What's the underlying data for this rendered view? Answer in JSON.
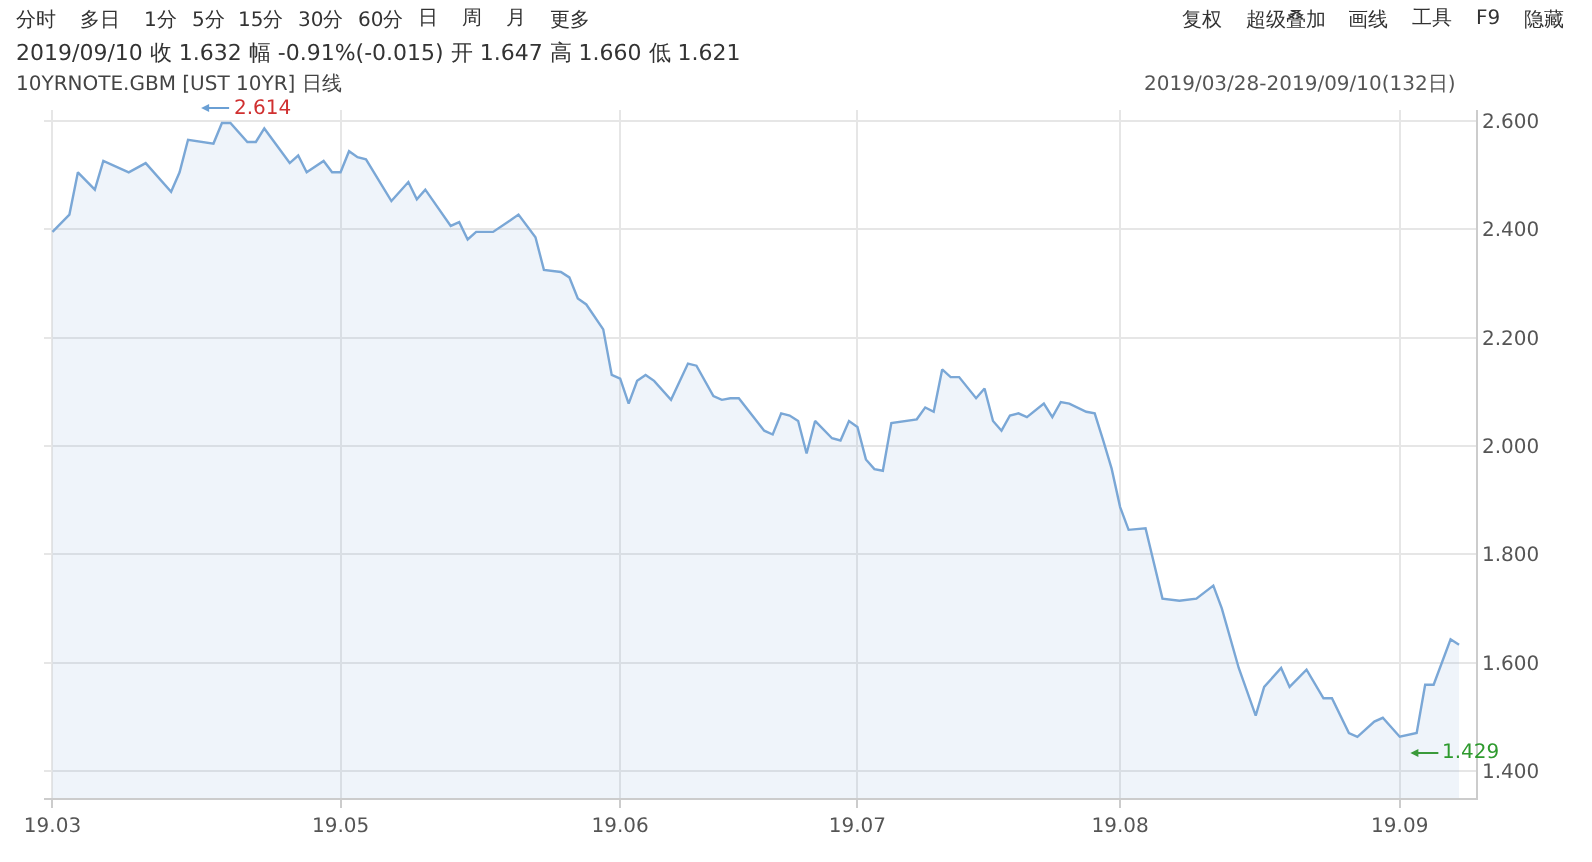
{
  "chart_data": {
    "type": "area",
    "title": "10YRNOTE.GBM [UST 10YR] 日线",
    "subtitle": "2019/09/10 收 1.632 幅 -0.91%(-0.015) 开 1.647 高 1.660 低 1.621",
    "annotations": [
      "分时",
      "多日",
      "1分",
      "5分",
      "15分",
      "30分",
      "60分",
      "日",
      "周",
      "月",
      "更多",
      "复权",
      "超级叠加",
      "画线",
      "工具",
      "F9",
      "隐藏",
      "2019/03/28-2019/09/10(132日)",
      "2.614",
      "1.429"
    ],
    "x": [
      "2019-03-28",
      "2019-03-30",
      "2019-03-31",
      "2019-04-02",
      "2019-04-03",
      "2019-04-06",
      "2019-04-08",
      "2019-04-11",
      "2019-04-12",
      "2019-04-13",
      "2019-04-16",
      "2019-04-17",
      "2019-04-18",
      "2019-04-20",
      "2019-04-21",
      "2019-04-22",
      "2019-04-25",
      "2019-04-26",
      "2019-04-27",
      "2019-04-29",
      "2019-04-30",
      "2019-05-01",
      "2019-05-02",
      "2019-05-03",
      "2019-05-04",
      "2019-05-07",
      "2019-05-09",
      "2019-05-10",
      "2019-05-11",
      "2019-05-14",
      "2019-05-15",
      "2019-05-16",
      "2019-05-17",
      "2019-05-19",
      "2019-05-21",
      "2019-05-22",
      "2019-05-24",
      "2019-05-25",
      "2019-05-27",
      "2019-05-28",
      "2019-05-29",
      "2019-05-30",
      "2019-06-01",
      "2019-06-02",
      "2019-06-03",
      "2019-06-04",
      "2019-06-05",
      "2019-06-06",
      "2019-06-07",
      "2019-06-09",
      "2019-06-11",
      "2019-06-12",
      "2019-06-14",
      "2019-06-15",
      "2019-06-16",
      "2019-06-17",
      "2019-06-20",
      "2019-06-21",
      "2019-06-22",
      "2019-06-23",
      "2019-06-24",
      "2019-06-25",
      "2019-06-26",
      "2019-06-28",
      "2019-06-29",
      "2019-06-30",
      "2019-07-01",
      "2019-07-02",
      "2019-07-03",
      "2019-07-04",
      "2019-07-05",
      "2019-07-08",
      "2019-07-09",
      "2019-07-10",
      "2019-07-11",
      "2019-07-12",
      "2019-07-13",
      "2019-07-15",
      "2019-07-16",
      "2019-07-17",
      "2019-07-18",
      "2019-07-19",
      "2019-07-20",
      "2019-07-21",
      "2019-07-23",
      "2019-07-24",
      "2019-07-25",
      "2019-07-26",
      "2019-07-28",
      "2019-07-29",
      "2019-07-30",
      "2019-07-31",
      "2019-08-01",
      "2019-08-02",
      "2019-08-04",
      "2019-08-06",
      "2019-08-08",
      "2019-08-10",
      "2019-08-12",
      "2019-08-13",
      "2019-08-15",
      "2019-08-17",
      "2019-08-18",
      "2019-08-20",
      "2019-08-21",
      "2019-08-23",
      "2019-08-25",
      "2019-08-26",
      "2019-08-28",
      "2019-08-29",
      "2019-08-31",
      "2019-09-01",
      "2019-09-03",
      "2019-09-05",
      "2019-09-06",
      "2019-09-07",
      "2019-09-09",
      "2019-09-10"
    ],
    "series": [
      {
        "color": "#7aa7d6",
        "values": [
          2.395,
          2.427,
          2.505,
          2.473,
          2.526,
          2.505,
          2.522,
          2.469,
          2.505,
          2.565,
          2.558,
          2.596,
          2.596,
          2.561,
          2.561,
          2.586,
          2.522,
          2.536,
          2.505,
          2.526,
          2.505,
          2.505,
          2.544,
          2.533,
          2.529,
          2.452,
          2.487,
          2.455,
          2.473,
          2.406,
          2.413,
          2.381,
          2.395,
          2.395,
          2.416,
          2.427,
          2.385,
          2.325,
          2.321,
          2.311,
          2.272,
          2.261,
          2.215,
          2.131,
          2.124,
          2.078,
          2.12,
          2.131,
          2.12,
          2.085,
          2.152,
          2.148,
          2.092,
          2.085,
          2.088,
          2.088,
          2.028,
          2.021,
          2.06,
          2.056,
          2.046,
          1.986,
          2.046,
          2.014,
          2.01,
          2.046,
          2.035,
          1.975,
          1.957,
          1.954,
          2.042,
          2.049,
          2.071,
          2.063,
          2.141,
          2.127,
          2.127,
          2.088,
          2.106,
          2.046,
          2.028,
          2.056,
          2.06,
          2.053,
          2.078,
          2.053,
          2.081,
          2.078,
          2.063,
          2.06,
          2.01,
          1.958,
          1.887,
          1.845,
          1.848,
          1.718,
          1.714,
          1.718,
          1.742,
          1.7,
          1.59,
          1.502,
          1.555,
          1.59,
          1.555,
          1.587,
          1.534,
          1.534,
          1.47,
          1.463,
          1.491,
          1.498,
          1.463,
          1.47,
          1.559,
          1.559,
          1.643,
          1.633
        ]
      }
    ],
    "xlim": [
      "2019-03-27",
      "2019-09-12"
    ],
    "xticks": [
      {
        "value": "2019-03-28",
        "label": "19.03"
      },
      {
        "value": "2019-05-01",
        "label": "19.05"
      },
      {
        "value": "2019-06-03",
        "label": "19.06"
      },
      {
        "value": "2019-07-01",
        "label": "19.07"
      },
      {
        "value": "2019-08-01",
        "label": "19.08"
      },
      {
        "value": "2019-09-03",
        "label": "19.09"
      }
    ],
    "ylim": [
      1.35,
      2.62
    ],
    "yticks": [
      {
        "value": 1.4,
        "label": "1.400"
      },
      {
        "value": 1.6,
        "label": "1.600"
      },
      {
        "value": 1.8,
        "label": "1.800"
      },
      {
        "value": 2.0,
        "label": "2.000"
      },
      {
        "value": 2.2,
        "label": "2.200"
      },
      {
        "value": 2.4,
        "label": "2.400"
      },
      {
        "value": 2.6,
        "label": "2.600"
      }
    ],
    "grid": true,
    "marker": "none",
    "line_style": "solid"
  }
}
